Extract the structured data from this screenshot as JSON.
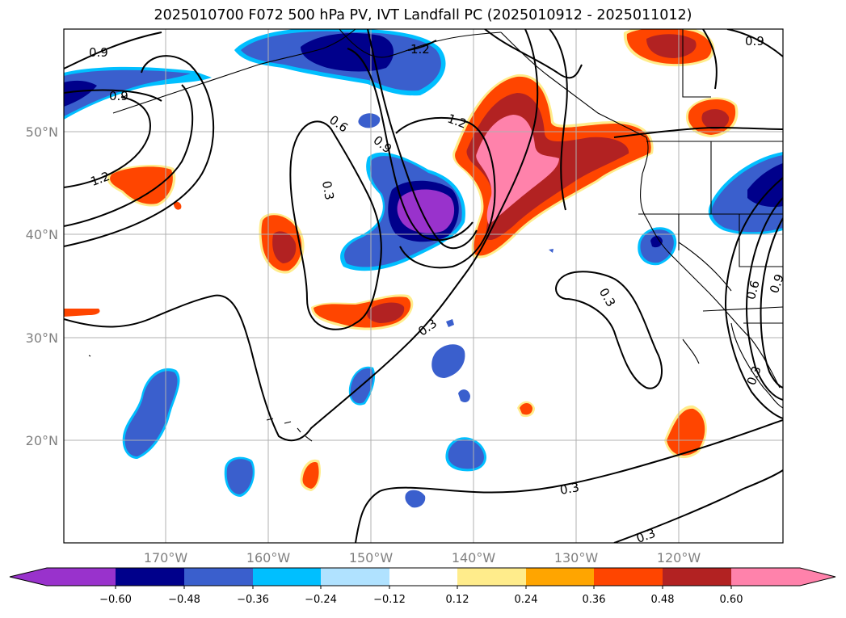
{
  "title": "2025010700 F072 500 hPa PV, IVT Landfall PC (2025010912 - 2025011012)",
  "colors": {
    "neg_060": "#9932CC",
    "neg_048": "#00008B",
    "neg_036": "#3A5FCD",
    "neg_024": "#00BFFF",
    "neg_012": "#B0E2FF",
    "neutral": "#FFFFFF",
    "pos_012": "#FFEC8B",
    "pos_024": "#FFA500",
    "pos_036": "#FF4500",
    "pos_048": "#B22222",
    "pos_060": "#FF82AB"
  },
  "map": {
    "lat_labels": [
      "50°N",
      "40°N",
      "30°N",
      "20°N"
    ],
    "lon_labels": [
      "170°W",
      "160°W",
      "150°W",
      "140°W",
      "130°W",
      "120°W"
    ],
    "contour_labels": [
      "0.9",
      "0.9",
      "1.2",
      "1.2",
      "0.6",
      "0.9",
      "1.2",
      "0.3",
      "0.3",
      "0.3",
      "0.3",
      "0.6",
      "0.9",
      "0.3",
      "0.3",
      "0.9"
    ]
  },
  "colorbar": {
    "ticks": [
      "−0.60",
      "−0.48",
      "−0.36",
      "−0.24",
      "−0.12",
      "0.12",
      "0.24",
      "0.36",
      "0.48",
      "0.60"
    ]
  }
}
